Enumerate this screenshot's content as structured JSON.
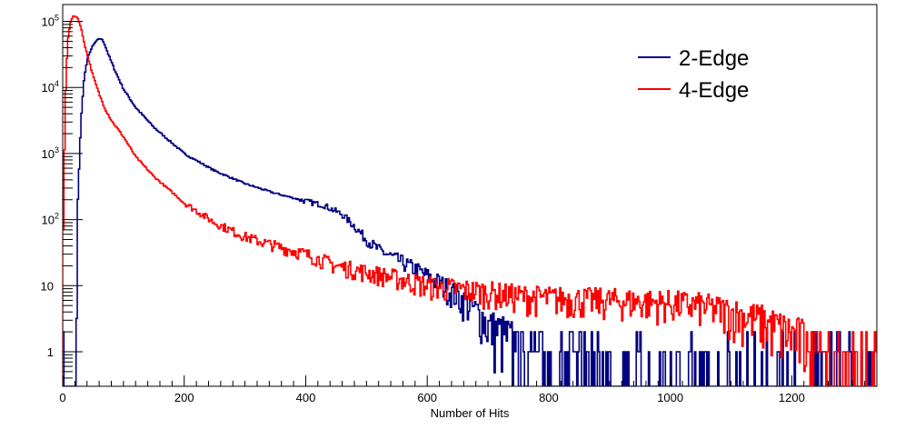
{
  "chart_data": {
    "type": "line",
    "title": "",
    "xlabel": "Number of Hits",
    "ylabel": "",
    "xlim": [
      0,
      1340
    ],
    "ylim": [
      0.3,
      180000
    ],
    "log_y": true,
    "grid": false,
    "legend_position": "top-right",
    "x_ticks": [
      {
        "value": 0,
        "label": "0"
      },
      {
        "value": 200,
        "label": "200"
      },
      {
        "value": 400,
        "label": "400"
      },
      {
        "value": 600,
        "label": "600"
      },
      {
        "value": 800,
        "label": "800"
      },
      {
        "value": 1000,
        "label": "1000"
      },
      {
        "value": 1200,
        "label": "1200"
      }
    ],
    "y_ticks": [
      {
        "value": 1,
        "base": "1",
        "exp": ""
      },
      {
        "value": 10,
        "base": "10",
        "exp": ""
      },
      {
        "value": 100,
        "base": "10",
        "exp": "2"
      },
      {
        "value": 1000,
        "base": "10",
        "exp": "3"
      },
      {
        "value": 10000,
        "base": "10",
        "exp": "4"
      },
      {
        "value": 100000,
        "base": "10",
        "exp": "5"
      }
    ],
    "series": [
      {
        "name": "2-Edge",
        "color": "#000080",
        "x": [
          22,
          25,
          30,
          35,
          40,
          45,
          50,
          55,
          60,
          63,
          68,
          75,
          85,
          100,
          120,
          150,
          200,
          250,
          300,
          350,
          400,
          430,
          460,
          480,
          500,
          520,
          550,
          580,
          600,
          620,
          650,
          670,
          690,
          700,
          720,
          740,
          760,
          800,
          850,
          900,
          1000,
          1100,
          1200,
          1340
        ],
        "values": [
          0.3,
          200,
          3000,
          13000,
          25000,
          35000,
          43000,
          50000,
          54000,
          55000,
          48000,
          32000,
          19000,
          9500,
          5000,
          2500,
          1000,
          550,
          350,
          250,
          190,
          165,
          120,
          80,
          50,
          35,
          25,
          18,
          14,
          11,
          7,
          5,
          3.5,
          2.5,
          2,
          1.5,
          1.2,
          1.0,
          0.8,
          0.7,
          0.6,
          0.5,
          0.5,
          0.5
        ]
      },
      {
        "name": "4-Edge",
        "color": "#ff0000",
        "x": [
          0,
          2,
          5,
          8,
          12,
          15,
          18,
          21,
          24,
          27,
          30,
          35,
          40,
          45,
          50,
          60,
          70,
          80,
          100,
          120,
          150,
          200,
          250,
          300,
          350,
          400,
          450,
          500,
          550,
          600,
          650,
          700,
          750,
          800,
          900,
          1000,
          1050,
          1100,
          1150,
          1340
        ],
        "values": [
          13,
          400,
          9000,
          50000,
          90000,
          110000,
          120000,
          120000,
          115000,
          100000,
          80000,
          50000,
          32000,
          22000,
          15000,
          8000,
          4700,
          3200,
          1800,
          900,
          450,
          180,
          90,
          55,
          40,
          30,
          20,
          16,
          13,
          10,
          9,
          8,
          7,
          6.5,
          6,
          5.5,
          5,
          4,
          3,
          0.5
        ]
      }
    ]
  }
}
